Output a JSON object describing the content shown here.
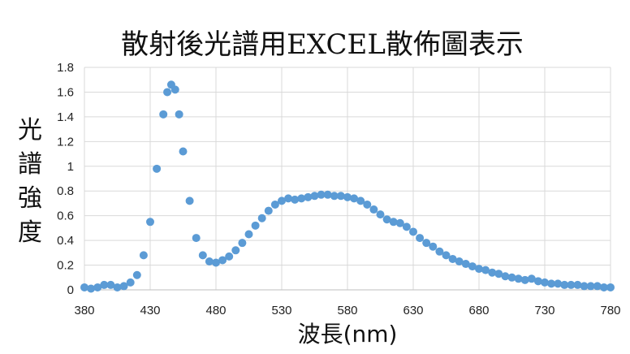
{
  "chart_data": {
    "type": "scatter",
    "title": "散射後光譜用EXCEL散佈圖表示",
    "xlabel": "波長(nm)",
    "ylabel": "光譜強度",
    "xlim": [
      380,
      780
    ],
    "ylim": [
      0,
      1.8
    ],
    "xticks": [
      "380",
      "430",
      "480",
      "530",
      "580",
      "630",
      "680",
      "730",
      "780"
    ],
    "yticks": [
      "0",
      "0.2",
      "0.4",
      "0.6",
      "0.8",
      "1",
      "1.2",
      "1.4",
      "1.6",
      "1.8"
    ],
    "grid": true,
    "marker_color": "#5b9bd5",
    "series": [
      {
        "x": [
          380,
          385,
          390,
          395,
          400,
          405,
          410,
          415,
          420,
          425,
          430,
          435,
          440,
          443,
          446,
          449,
          452,
          455,
          460,
          465,
          470,
          475,
          480,
          485,
          490,
          495,
          500,
          505,
          510,
          515,
          520,
          525,
          530,
          535,
          540,
          545,
          550,
          555,
          560,
          565,
          570,
          575,
          580,
          585,
          590,
          595,
          600,
          605,
          610,
          615,
          620,
          625,
          630,
          635,
          640,
          645,
          650,
          655,
          660,
          665,
          670,
          675,
          680,
          685,
          690,
          695,
          700,
          705,
          710,
          715,
          720,
          725,
          730,
          735,
          740,
          745,
          750,
          755,
          760,
          765,
          770,
          775,
          780
        ],
        "y": [
          0.02,
          0.01,
          0.02,
          0.04,
          0.04,
          0.02,
          0.03,
          0.06,
          0.12,
          0.28,
          0.55,
          0.98,
          1.42,
          1.6,
          1.66,
          1.62,
          1.42,
          1.12,
          0.72,
          0.42,
          0.28,
          0.23,
          0.22,
          0.24,
          0.27,
          0.32,
          0.38,
          0.45,
          0.52,
          0.58,
          0.64,
          0.69,
          0.72,
          0.74,
          0.73,
          0.74,
          0.75,
          0.76,
          0.77,
          0.77,
          0.76,
          0.76,
          0.75,
          0.74,
          0.72,
          0.69,
          0.65,
          0.61,
          0.57,
          0.55,
          0.54,
          0.51,
          0.47,
          0.42,
          0.38,
          0.35,
          0.31,
          0.28,
          0.25,
          0.23,
          0.21,
          0.19,
          0.17,
          0.16,
          0.14,
          0.13,
          0.11,
          0.1,
          0.09,
          0.08,
          0.09,
          0.07,
          0.06,
          0.05,
          0.05,
          0.04,
          0.04,
          0.04,
          0.03,
          0.03,
          0.03,
          0.02,
          0.02
        ]
      }
    ]
  }
}
